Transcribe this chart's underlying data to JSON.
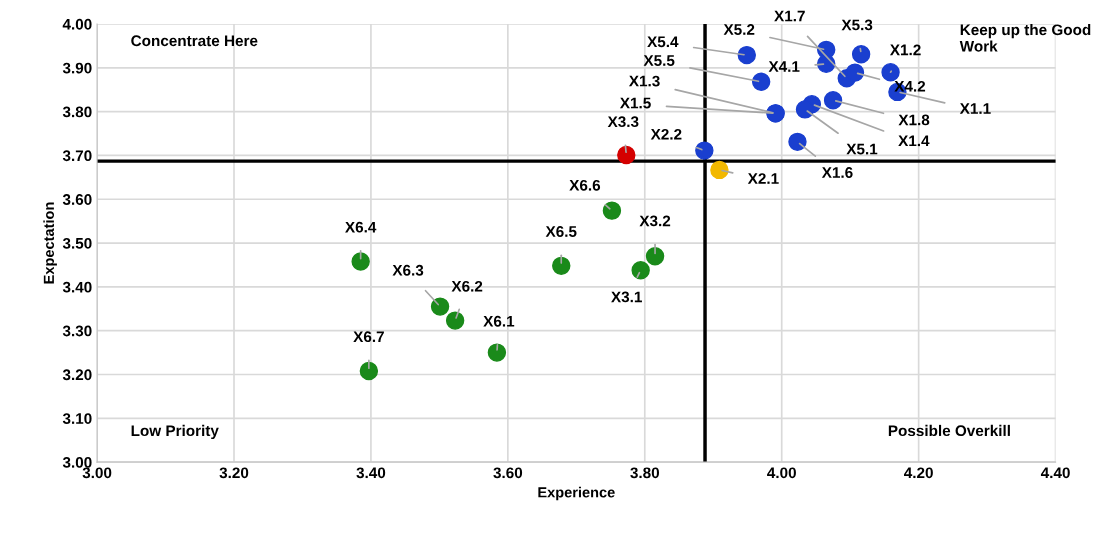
{
  "chart_data": {
    "type": "scatter",
    "xlabel": "Experience",
    "ylabel": "Expectation",
    "xlim": [
      3.0,
      4.4
    ],
    "xticks": [
      {
        "value": 3.0,
        "label": "3.00"
      },
      {
        "value": 3.2,
        "label": "3.20"
      },
      {
        "value": 3.4,
        "label": "3.40"
      },
      {
        "value": 3.6,
        "label": "3.60"
      },
      {
        "value": 3.8,
        "label": "3.80"
      },
      {
        "value": 4.0,
        "label": "4.00"
      },
      {
        "value": 4.2,
        "label": "4.20"
      },
      {
        "value": 4.4,
        "label": "4.40"
      }
    ],
    "ylim": [
      3.0,
      4.0
    ],
    "yticks": [
      {
        "value": 3.0,
        "label": "3.00"
      },
      {
        "value": 3.1,
        "label": "3.10"
      },
      {
        "value": 3.2,
        "label": "3.20"
      },
      {
        "value": 3.3,
        "label": "3.30"
      },
      {
        "value": 3.4,
        "label": "3.40"
      },
      {
        "value": 3.5,
        "label": "3.50"
      },
      {
        "value": 3.6,
        "label": "3.60"
      },
      {
        "value": 3.7,
        "label": "3.70"
      },
      {
        "value": 3.8,
        "label": "3.80"
      },
      {
        "value": 3.9,
        "label": "3.90"
      },
      {
        "value": 4.0,
        "label": "4.00"
      }
    ],
    "grid": true,
    "marker": "circle",
    "legend": false,
    "series": [
      {
        "color": "#1a3fcf",
        "x": [
          3.949,
          4.065,
          4.065,
          4.116,
          4.159,
          4.095,
          4.107,
          4.169,
          3.97,
          3.991,
          3.991,
          4.044,
          4.034,
          4.075,
          4.023,
          3.887
        ],
        "values": [
          3.929,
          3.941,
          3.909,
          3.931,
          3.89,
          3.876,
          3.889,
          3.845,
          3.868,
          3.796,
          3.796,
          3.817,
          3.805,
          3.826,
          3.731,
          3.711
        ],
        "value_labels": [
          "X5.4",
          "X5.2",
          "X4.1",
          "X5.3",
          "X1.2",
          "X1.7",
          "X4.2",
          "X1.1",
          "X5.5",
          "X1.3",
          "X1.5",
          "X1.4",
          "X5.1",
          "X1.8",
          "X1.6",
          "X2.2"
        ]
      },
      {
        "color": "#d40000",
        "x": [
          3.773
        ],
        "values": [
          3.701
        ],
        "value_labels": [
          "X3.3"
        ]
      },
      {
        "color": "#f2b800",
        "x": [
          3.909
        ],
        "values": [
          3.667
        ],
        "value_labels": [
          "X2.1"
        ]
      },
      {
        "color": "#1a8a1a",
        "x": [
          3.752,
          3.815,
          3.794,
          3.678,
          3.385,
          3.501,
          3.523,
          3.584,
          3.397
        ],
        "values": [
          3.574,
          3.47,
          3.438,
          3.448,
          3.458,
          3.355,
          3.323,
          3.25,
          3.208
        ],
        "value_labels": [
          "X6.6",
          "X3.2",
          "X3.1",
          "X6.5",
          "X6.4",
          "X6.3",
          "X6.2",
          "X6.1",
          "X6.7"
        ]
      }
    ],
    "ref_lines": [
      {
        "axis": "x",
        "value": 3.888,
        "color": "#000000"
      },
      {
        "axis": "y",
        "value": 3.687,
        "color": "#000000"
      }
    ],
    "annotations": [
      "Concentrate Here",
      "Keep up the Good Work",
      "Low Priority",
      "Possible Overkill"
    ]
  }
}
